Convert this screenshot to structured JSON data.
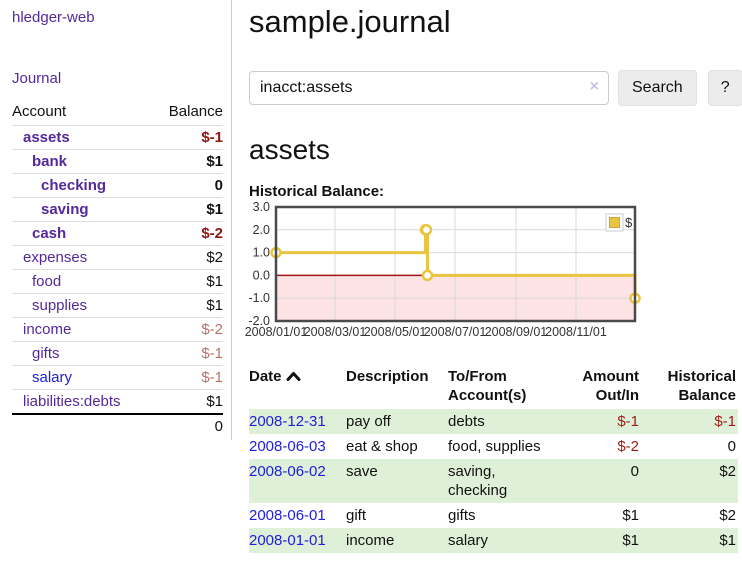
{
  "app": {
    "brand": "hledger-web",
    "nav_journal": "Journal"
  },
  "sidebar": {
    "headers": {
      "account": "Account",
      "balance": "Balance"
    },
    "accounts": [
      {
        "name": "assets",
        "depth": 1,
        "bold": true,
        "link_color": "purple",
        "amount": "$-1",
        "amount_tone": "neg"
      },
      {
        "name": "bank",
        "depth": 2,
        "bold": true,
        "link_color": "purple",
        "amount": "$1",
        "amount_tone": "pos"
      },
      {
        "name": "checking",
        "depth": 3,
        "bold": true,
        "link_color": "purple",
        "amount": "0",
        "amount_tone": "pos"
      },
      {
        "name": "saving",
        "depth": 3,
        "bold": true,
        "link_color": "purple",
        "amount": "$1",
        "amount_tone": "pos"
      },
      {
        "name": "cash",
        "depth": 2,
        "bold": true,
        "link_color": "purple",
        "amount": "$-2",
        "amount_tone": "neg"
      },
      {
        "name": "expenses",
        "depth": 1,
        "bold": false,
        "link_color": "purple",
        "amount": "$2",
        "amount_tone": "pos"
      },
      {
        "name": "food",
        "depth": 2,
        "bold": false,
        "link_color": "purple",
        "amount": "$1",
        "amount_tone": "pos"
      },
      {
        "name": "supplies",
        "depth": 2,
        "bold": false,
        "link_color": "purple",
        "amount": "$1",
        "amount_tone": "pos"
      },
      {
        "name": "income",
        "depth": 1,
        "bold": false,
        "link_color": "purple",
        "amount": "$-2",
        "amount_tone": "neg-soft"
      },
      {
        "name": "gifts",
        "depth": 2,
        "bold": false,
        "link_color": "purple",
        "amount": "$-1",
        "amount_tone": "neg-soft"
      },
      {
        "name": "salary",
        "depth": 2,
        "bold": false,
        "link_color": "blue",
        "amount": "$-1",
        "amount_tone": "neg-soft"
      },
      {
        "name": "liabilities:debts",
        "depth": 1,
        "bold": false,
        "link_color": "purple",
        "amount": "$1",
        "amount_tone": "pos"
      }
    ],
    "total": "0"
  },
  "main": {
    "title": "sample.journal",
    "search": {
      "query": "inacct:assets",
      "clear_icon": "×",
      "search_label": "Search",
      "help_label": "?"
    },
    "account_heading": "assets",
    "chart_label": "Historical Balance:"
  },
  "chart_data": {
    "type": "line",
    "title": "Historical Balance:",
    "step": true,
    "series": [
      {
        "name": "$",
        "color": "#e9c440",
        "points": [
          [
            "2008-01-01",
            1
          ],
          [
            "2008-06-01",
            2
          ],
          [
            "2008-06-02",
            2
          ],
          [
            "2008-06-03",
            0
          ],
          [
            "2008-12-31",
            -1
          ]
        ]
      }
    ],
    "x_ticks": [
      "2008/01/01",
      "2008/03/01",
      "2008/05/01",
      "2008/07/01",
      "2008/09/01",
      "2008/11/01"
    ],
    "y_ticks": [
      3.0,
      2.0,
      1.0,
      0.0,
      -1.0,
      -2.0
    ],
    "ylim": [
      -2,
      3
    ],
    "xlim": [
      "2008-01-01",
      "2008-12-31"
    ],
    "grid": true,
    "legend_position": "top-right",
    "negative_region_shaded": true
  },
  "register": {
    "headers": {
      "date": "Date",
      "sort_icon": "chevron-up",
      "description": "Description",
      "accounts": "To/From\nAccount(s)",
      "amount": "Amount\nOut/In",
      "balance": "Historical\nBalance"
    },
    "rows": [
      {
        "date": "2008-12-31",
        "description": "pay off",
        "accounts": "debts",
        "amount": "$-1",
        "amount_neg": true,
        "balance": "$-1",
        "balance_neg": true,
        "shaded": true
      },
      {
        "date": "2008-06-03",
        "description": "eat & shop",
        "accounts": "food, supplies",
        "amount": "$-2",
        "amount_neg": true,
        "balance": "0",
        "balance_neg": false,
        "shaded": false
      },
      {
        "date": "2008-06-02",
        "description": "save",
        "accounts": "saving, checking",
        "amount": "0",
        "amount_neg": false,
        "balance": "$2",
        "balance_neg": false,
        "shaded": true
      },
      {
        "date": "2008-06-01",
        "description": "gift",
        "accounts": "gifts",
        "amount": "$1",
        "amount_neg": false,
        "balance": "$2",
        "balance_neg": false,
        "shaded": false
      },
      {
        "date": "2008-01-01",
        "description": "income",
        "accounts": "salary",
        "amount": "$1",
        "amount_neg": false,
        "balance": "$1",
        "balance_neg": false,
        "shaded": true
      }
    ]
  },
  "colors": {
    "accent_gold": "#e9c440",
    "negative_strong": "#8f1510",
    "negative_soft": "#b4726a",
    "link_purple": "#55289b",
    "link_blue": "#2020dd",
    "row_stripe_green": "#dff0d8",
    "chart_negative_region": "#fde3e3",
    "zero_line": "#9b1313",
    "chart_frame": "#4a4a4a"
  }
}
